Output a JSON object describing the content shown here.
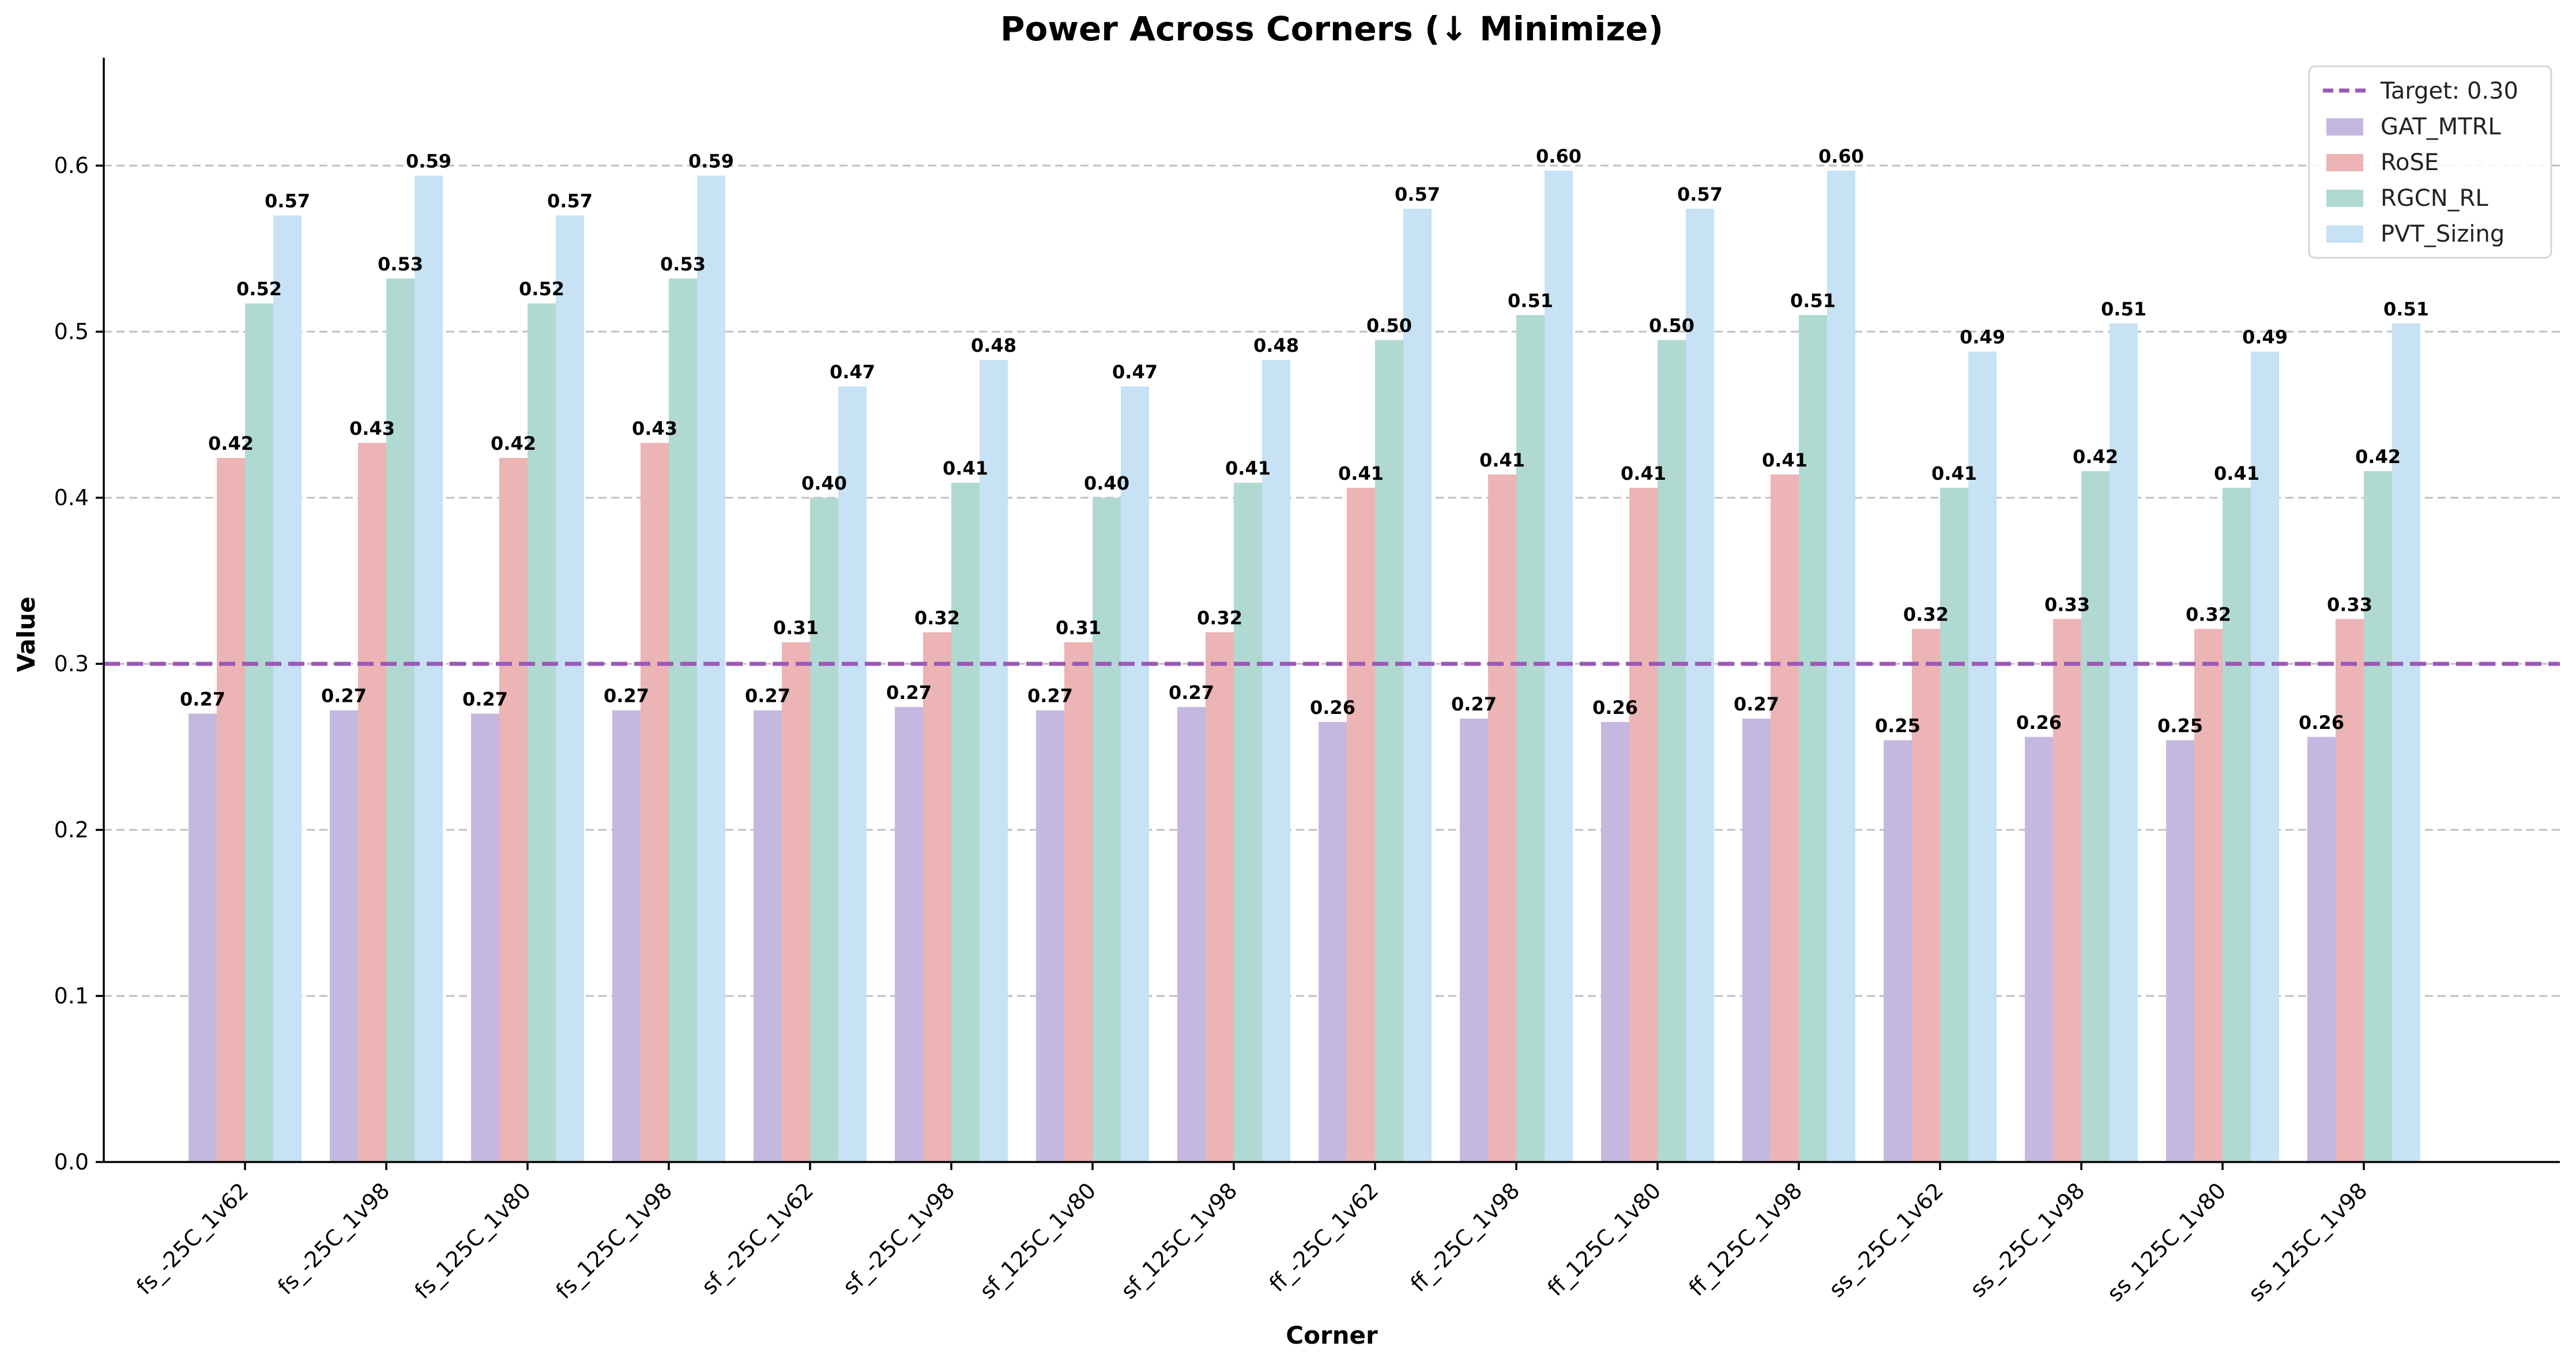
{
  "chart_data": {
    "type": "bar",
    "title": "Power Across Corners (↓ Minimize)",
    "xlabel": "Corner",
    "ylabel": "Value",
    "ylim": [
      0,
      0.665
    ],
    "yticks": [
      0.0,
      0.1,
      0.2,
      0.3,
      0.4,
      0.5,
      0.6
    ],
    "ytick_labels": [
      "0.0",
      "0.1",
      "0.2",
      "0.3",
      "0.4",
      "0.5",
      "0.6"
    ],
    "grid": "y-dashed",
    "legend_position": "top-right",
    "categories": [
      "fs_-25C_1v62",
      "fs_-25C_1v98",
      "fs_125C_1v80",
      "fs_125C_1v98",
      "sf_-25C_1v62",
      "sf_-25C_1v98",
      "sf_125C_1v80",
      "sf_125C_1v98",
      "ff_-25C_1v62",
      "ff_-25C_1v98",
      "ff_125C_1v80",
      "ff_125C_1v98",
      "ss_-25C_1v62",
      "ss_-25C_1v98",
      "ss_125C_1v80",
      "ss_125C_1v98"
    ],
    "reference_line": {
      "label": "Target: 0.30",
      "value": 0.3,
      "color": "#9b59b6"
    },
    "series": [
      {
        "name": "GAT_MTRL",
        "color": "#c5b8e0",
        "values": [
          0.27,
          0.272,
          0.27,
          0.272,
          0.272,
          0.274,
          0.272,
          0.274,
          0.265,
          0.267,
          0.265,
          0.267,
          0.254,
          0.256,
          0.254,
          0.256
        ],
        "labels": [
          "0.27",
          "0.27",
          "0.27",
          "0.27",
          "0.27",
          "0.27",
          "0.27",
          "0.27",
          "0.26",
          "0.27",
          "0.26",
          "0.27",
          "0.25",
          "0.26",
          "0.25",
          "0.26"
        ]
      },
      {
        "name": "RoSE",
        "color": "#ecb4b4",
        "values": [
          0.424,
          0.433,
          0.424,
          0.433,
          0.313,
          0.319,
          0.313,
          0.319,
          0.406,
          0.414,
          0.406,
          0.414,
          0.321,
          0.327,
          0.321,
          0.327
        ],
        "labels": [
          "0.42",
          "0.43",
          "0.42",
          "0.43",
          "0.31",
          "0.32",
          "0.31",
          "0.32",
          "0.41",
          "0.41",
          "0.41",
          "0.41",
          "0.32",
          "0.33",
          "0.32",
          "0.33"
        ]
      },
      {
        "name": "RGCN_RL",
        "color": "#b0d9d2",
        "values": [
          0.517,
          0.532,
          0.517,
          0.532,
          0.4,
          0.409,
          0.4,
          0.409,
          0.495,
          0.51,
          0.495,
          0.51,
          0.406,
          0.416,
          0.406,
          0.416
        ],
        "labels": [
          "0.52",
          "0.53",
          "0.52",
          "0.53",
          "0.40",
          "0.41",
          "0.40",
          "0.41",
          "0.50",
          "0.51",
          "0.50",
          "0.51",
          "0.41",
          "0.42",
          "0.41",
          "0.42"
        ]
      },
      {
        "name": "PVT_Sizing",
        "color": "#c6e2f4",
        "values": [
          0.57,
          0.594,
          0.57,
          0.594,
          0.467,
          0.483,
          0.467,
          0.483,
          0.574,
          0.597,
          0.574,
          0.597,
          0.488,
          0.505,
          0.488,
          0.505
        ],
        "labels": [
          "0.57",
          "0.59",
          "0.57",
          "0.59",
          "0.47",
          "0.48",
          "0.47",
          "0.48",
          "0.57",
          "0.60",
          "0.57",
          "0.60",
          "0.49",
          "0.51",
          "0.49",
          "0.51"
        ]
      }
    ]
  }
}
